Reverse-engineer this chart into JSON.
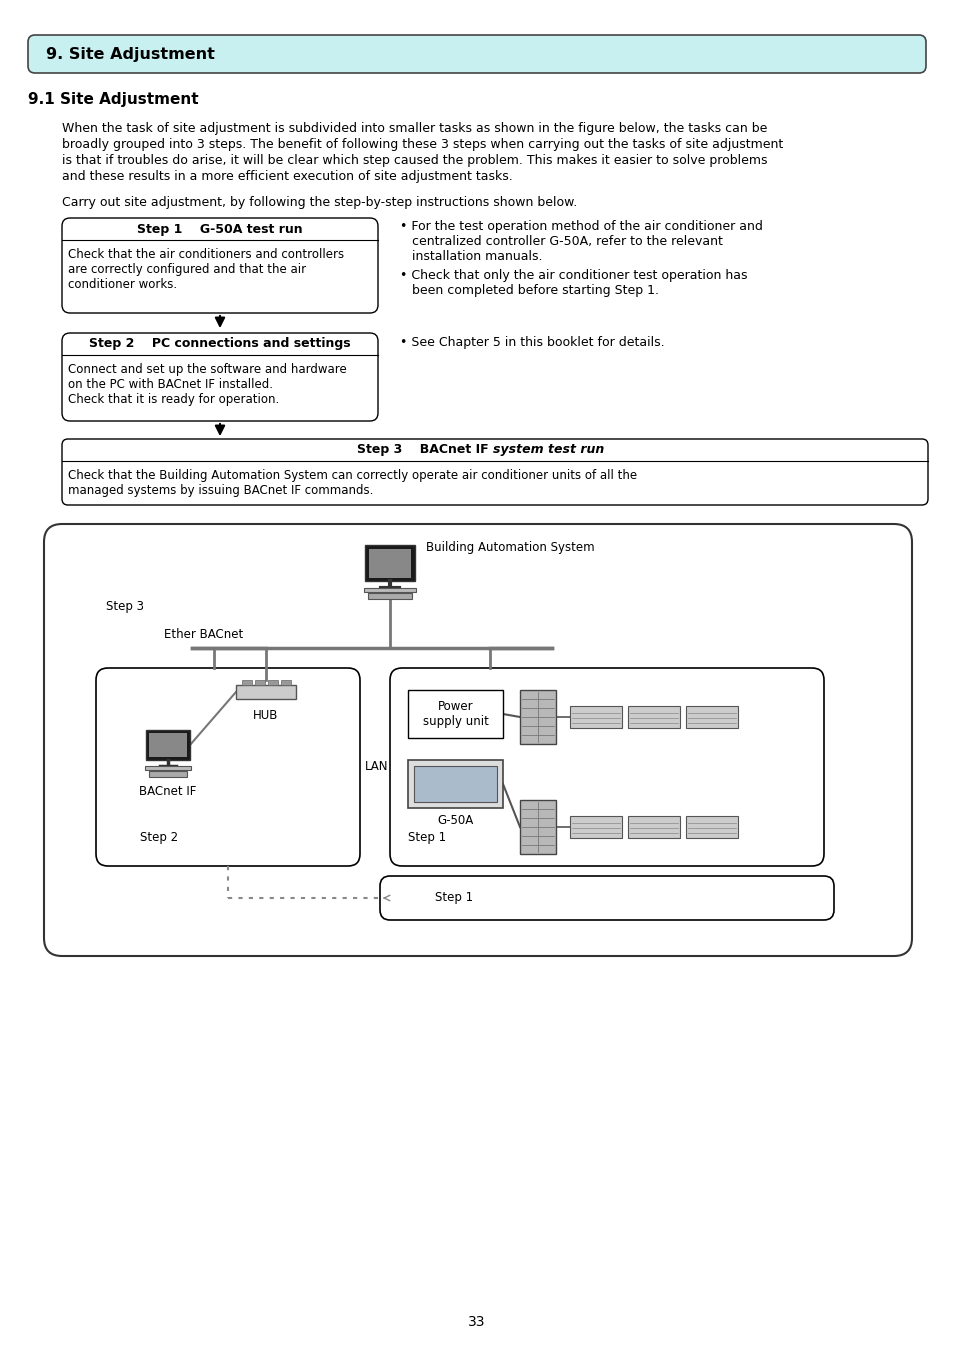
{
  "title_box": "9. Site Adjustment",
  "section_title": "9.1 Site Adjustment",
  "body_line1": "When the task of site adjustment is subdivided into smaller tasks as shown in the figure below, the tasks can be",
  "body_line2": "broadly grouped into 3 steps. The benefit of following these 3 steps when carrying out the tasks of site adjustment",
  "body_line3": "is that if troubles do arise, it will be clear which step caused the problem. This makes it easier to solve problems",
  "body_line4": "and these results in a more efficient execution of site adjustment tasks.",
  "carry_text": "Carry out site adjustment, by following the step-by-step instructions shown below.",
  "step1_header": "Step 1    G-50A test run",
  "step1_line1": "Check that the air conditioners and controllers",
  "step1_line2": "are correctly configured and that the air",
  "step1_line3": "conditioner works.",
  "step1_note1a": "• For the test operation method of the air conditioner and",
  "step1_note1b": "   centralized controller G-50A, refer to the relevant",
  "step1_note1c": "   installation manuals.",
  "step1_note2a": "• Check that only the air conditioner test operation has",
  "step1_note2b": "   been completed before starting Step 1.",
  "step2_header": "Step 2    PC connections and settings",
  "step2_line1": "Connect and set up the software and hardware",
  "step2_line2": "on the PC with BACnet IF installed.",
  "step2_line3": "Check that it is ready for operation.",
  "step2_note": "• See Chapter 5 in this booklet for details.",
  "step3_header_normal": "Step 3    BACnet IF ",
  "step3_header_bold": "system test run",
  "step3_line1": "Check that the Building Automation System can correctly operate air conditioner units of all the",
  "step3_line2": "managed systems by issuing BACnet IF commands.",
  "page_number": "33",
  "bg_color": "#ffffff",
  "title_bg_color": "#c8f0f0",
  "text_color": "#000000",
  "gray_line": "#888888",
  "dark_gray": "#555555",
  "mid_gray": "#aaaaaa",
  "light_gray": "#dddddd"
}
